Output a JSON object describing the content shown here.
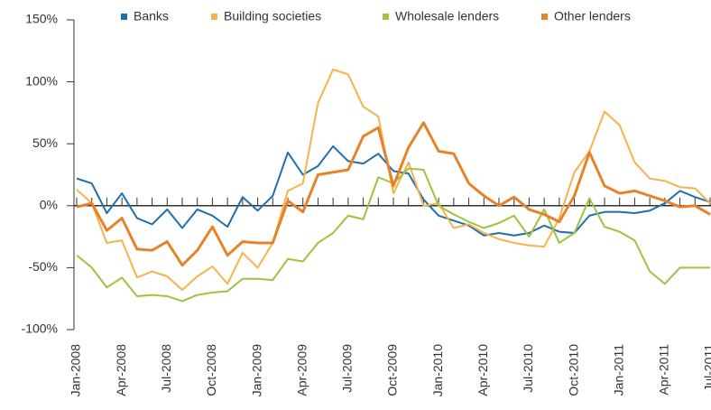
{
  "chart_data": {
    "type": "line",
    "categories": [
      "Jan-2008",
      null,
      null,
      "Apr-2008",
      null,
      null,
      "Jul-2008",
      null,
      null,
      "Oct-2008",
      null,
      null,
      "Jan-2009",
      null,
      null,
      "Apr-2009",
      null,
      null,
      "Jul-2009",
      null,
      null,
      "Oct-2009",
      null,
      null,
      "Jan-2010",
      null,
      null,
      "Apr-2010",
      null,
      null,
      "Jul-2010",
      null,
      null,
      "Oct-2010",
      null,
      null,
      "Jan-2011",
      null,
      null,
      "Apr-2011",
      null,
      null,
      "Jul-2011"
    ],
    "series": [
      {
        "name": "Banks",
        "color": "#1f6fad",
        "values": [
          22,
          18,
          -6,
          10,
          -10,
          -15,
          -3,
          -18,
          -3,
          -8,
          -17,
          7,
          -4,
          8,
          43,
          25,
          32,
          48,
          36,
          34,
          42,
          28,
          26,
          5,
          -8,
          -12,
          -16,
          -24,
          -22,
          -24,
          -22,
          -16,
          -21,
          -22,
          -8,
          -5,
          -5,
          -6,
          -4,
          2,
          12,
          7,
          3
        ]
      },
      {
        "name": "Building societies",
        "color": "#f7b24a",
        "values": [
          13,
          2,
          -30,
          -28,
          -58,
          -53,
          -57,
          -68,
          -57,
          -49,
          -63,
          -38,
          -50,
          -30,
          12,
          18,
          83,
          110,
          106,
          80,
          72,
          10,
          35,
          0,
          2,
          -18,
          -15,
          -22,
          -27,
          -30,
          -32,
          -33,
          -10,
          27,
          44,
          76,
          65,
          35,
          22,
          20,
          15,
          14,
          2
        ]
      },
      {
        "name": "Wholesale lenders",
        "color": "#9cc43c",
        "values": [
          -40,
          -50,
          -66,
          -58,
          -73,
          -72,
          -73,
          -77,
          -72,
          -70,
          -69,
          -59,
          -59,
          -60,
          -43,
          -45,
          -30,
          -22,
          -8,
          -11,
          23,
          18,
          30,
          29,
          0,
          -7,
          -13,
          -18,
          -14,
          -8,
          -25,
          -3,
          -30,
          -22,
          6,
          -17,
          -21,
          -28,
          -53,
          -63,
          -50,
          -50,
          -50
        ]
      },
      {
        "name": "Other lenders",
        "color": "#e8822a",
        "values": [
          -1,
          2,
          -20,
          -10,
          -35,
          -36,
          -29,
          -48,
          -36,
          -17,
          -40,
          -29,
          -30,
          -30,
          4,
          -5,
          25,
          27,
          29,
          56,
          63,
          16,
          47,
          67,
          44,
          42,
          18,
          8,
          0,
          7,
          -3,
          -7,
          -13,
          8,
          43,
          16,
          10,
          12,
          8,
          4,
          -1,
          0,
          -7
        ]
      }
    ],
    "ylim": [
      -100,
      150
    ],
    "yticks": [
      {
        "value": -100,
        "label": "-100%"
      },
      {
        "value": -50,
        "label": "-50%"
      },
      {
        "value": 0,
        "label": "0%"
      },
      {
        "value": 50,
        "label": "50%"
      },
      {
        "value": 100,
        "label": "100%"
      },
      {
        "value": 150,
        "label": "150%"
      }
    ],
    "legend": "top"
  }
}
